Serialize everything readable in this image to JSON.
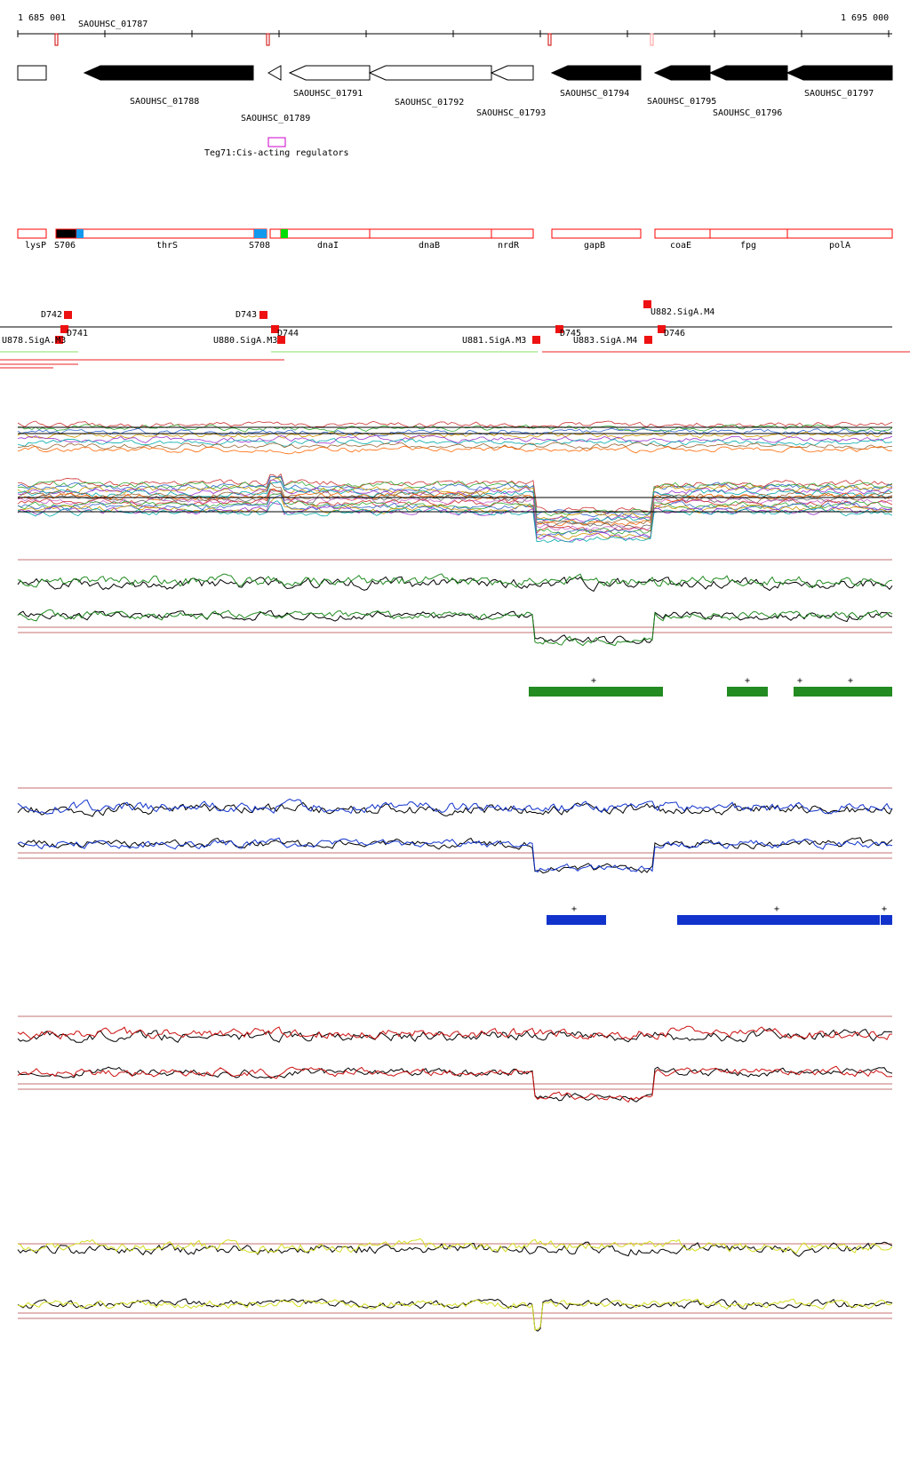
{
  "scale": {
    "start_label": "1 685 001",
    "end_label": "1 695 000"
  },
  "genes": [
    {
      "id": "g1787",
      "label": "SAOUHSC_01787",
      "fill": "#ffffff",
      "dir": "none"
    },
    {
      "id": "g1788",
      "label": "SAOUHSC_01788",
      "fill": "#000000",
      "dir": "left"
    },
    {
      "id": "g1789",
      "label": "SAOUHSC_01789",
      "fill": "#ffffff",
      "dir": "left"
    },
    {
      "id": "g1791",
      "label": "SAOUHSC_01791",
      "fill": "#ffffff",
      "dir": "left"
    },
    {
      "id": "g1792",
      "label": "SAOUHSC_01792",
      "fill": "#ffffff",
      "dir": "left"
    },
    {
      "id": "g1793",
      "label": "SAOUHSC_01793",
      "fill": "#ffffff",
      "dir": "left"
    },
    {
      "id": "g1794",
      "label": "SAOUHSC_01794",
      "fill": "#000000",
      "dir": "left"
    },
    {
      "id": "g1795",
      "label": "SAOUHSC_01795",
      "fill": "#000000",
      "dir": "left"
    },
    {
      "id": "g1796",
      "label": "SAOUHSC_01796",
      "fill": "#000000",
      "dir": "left"
    },
    {
      "id": "g1797",
      "label": "SAOUHSC_01797",
      "fill": "#000000",
      "dir": "left"
    }
  ],
  "regulator": {
    "label": "Teg71:Cis-acting regulators",
    "color": "#cc00cc"
  },
  "annotations": [
    {
      "label": "lysP"
    },
    {
      "label": "S706"
    },
    {
      "label": "thrS"
    },
    {
      "label": "S708"
    },
    {
      "label": "dnaI"
    },
    {
      "label": "dnaB"
    },
    {
      "label": "nrdR"
    },
    {
      "label": "gapB"
    },
    {
      "label": "coaE"
    },
    {
      "label": "fpg"
    },
    {
      "label": "polA"
    }
  ],
  "features": [
    {
      "label": "D742"
    },
    {
      "label": "D741"
    },
    {
      "label": "D743"
    },
    {
      "label": "D744"
    },
    {
      "label": "U878.SigA.M3"
    },
    {
      "label": "U880.SigA.M3"
    },
    {
      "label": "U881.SigA.M3"
    },
    {
      "label": "D745"
    },
    {
      "label": "U883.SigA.M4"
    },
    {
      "label": "U882.SigA.M4"
    },
    {
      "label": "D746"
    }
  ],
  "tracks": [
    {
      "id": "green",
      "color": "#228b22"
    },
    {
      "id": "blue",
      "color": "#1133cc"
    },
    {
      "id": "red",
      "color": "#cc1111"
    },
    {
      "id": "yellow",
      "color": "#d4dd22"
    }
  ],
  "segments": {
    "green": [
      {
        "label": "+"
      },
      {
        "label": "+"
      },
      {
        "label": "+"
      },
      {
        "label": "+"
      }
    ],
    "blue": [
      {
        "label": "+"
      },
      {
        "label": "+"
      },
      {
        "label": "+"
      }
    ]
  },
  "colors": {
    "annotation_red": "#ff0000",
    "feature_red": "#ee1111",
    "light_blue": "#1199ee",
    "bright_green": "#00dd00"
  }
}
